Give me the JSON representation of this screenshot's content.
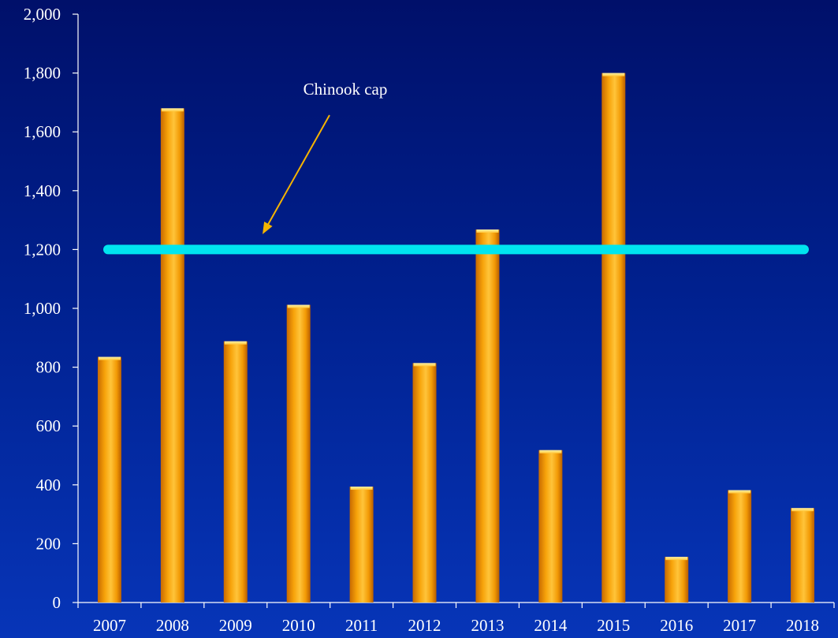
{
  "chart_data": {
    "type": "bar",
    "categories": [
      "2007",
      "2008",
      "2009",
      "2010",
      "2011",
      "2012",
      "2013",
      "2014",
      "2015",
      "2016",
      "2017",
      "2018"
    ],
    "values": [
      835,
      1680,
      888,
      1012,
      394,
      814,
      1268,
      518,
      1800,
      155,
      382,
      321
    ],
    "ylim": [
      0,
      2000
    ],
    "yticks": [
      0,
      200,
      400,
      600,
      800,
      1000,
      1200,
      1400,
      1600,
      1800,
      2000
    ],
    "ytick_labels": [
      "0",
      "200",
      "400",
      "600",
      "800",
      "1,000",
      "1,200",
      "1,400",
      "1,600",
      "1,800",
      "2,000"
    ],
    "grid": false,
    "title": "",
    "xlabel": "",
    "ylabel": "",
    "reference_line": {
      "label": "Chinook cap",
      "value": 1200,
      "color": "#00e5ef"
    },
    "bar_color": "#f5a000",
    "bar_highlight": "#ffd24a"
  }
}
